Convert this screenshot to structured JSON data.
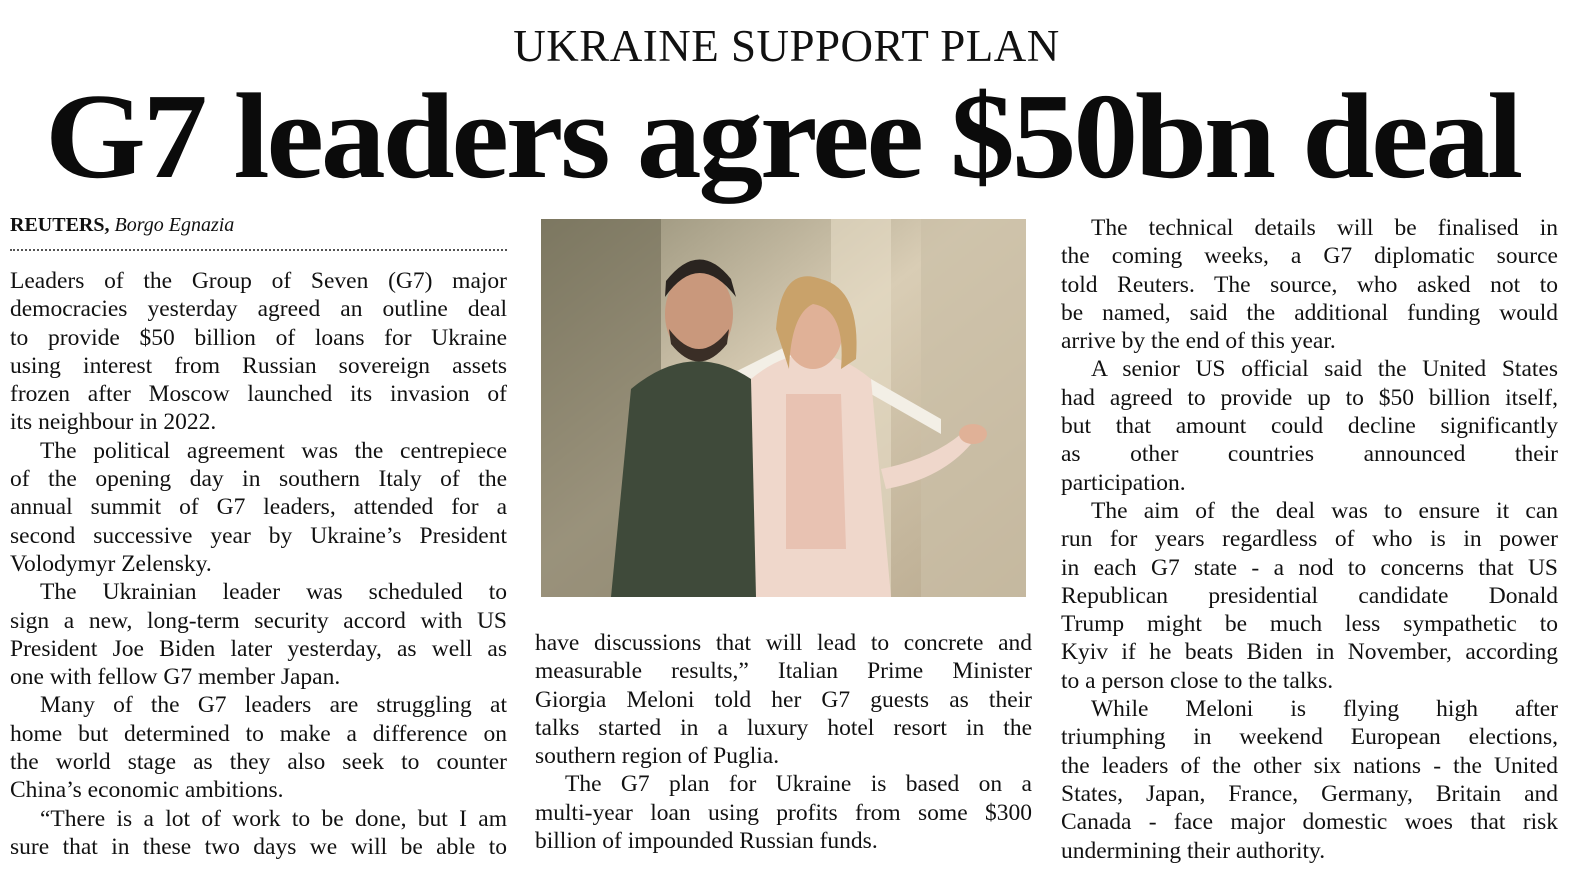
{
  "kicker": "UKRAINE SUPPORT PLAN",
  "headline": "G7 leaders agree $50bn deal",
  "byline": {
    "agency": "REUTERS,",
    "location": "Borgo Egnazia"
  },
  "photo": {
    "icon": "photo-zelensky-meloni"
  },
  "columns": [
    {
      "paragraphs": [
        {
          "continues": true,
          "lines": [
            "Leaders of the Group of Seven (G7) major",
            "democracies yesterday agreed an outline deal",
            "to provide $50 billion of loans for Ukraine",
            "using interest from Russian sovereign assets",
            "frozen after Moscow launched its invasion of",
            "its neighbour in 2022."
          ]
        },
        {
          "lines": [
            "The political agreement was the centrepiece",
            "of the opening day in southern Italy of the",
            "annual summit of G7 leaders, attended for a",
            "second successive year by Ukraine’s President",
            "Volodymyr Zelensky."
          ]
        },
        {
          "lines": [
            "The Ukrainian leader was scheduled to",
            "sign a new, long-term security accord with US",
            "President Joe Biden later yesterday, as well as",
            "one with fellow G7 member Japan."
          ]
        },
        {
          "lines": [
            "Many of the G7 leaders are struggling at",
            "home but determined to make a difference on",
            "the world stage as they also seek to counter",
            "China’s economic ambitions."
          ]
        },
        {
          "runs_on": true,
          "lines": [
            "“There is a lot of work to be done, but I am",
            "sure that in these two days we will be able to"
          ]
        }
      ]
    },
    {
      "paragraphs": [
        {
          "continues": true,
          "lines": [
            "have discussions that will lead to concrete and",
            "measurable results,” Italian Prime Minister",
            "Giorgia Meloni told her G7 guests as their",
            "talks started in a luxury hotel resort in the",
            "southern region of Puglia."
          ]
        },
        {
          "lines": [
            "The G7 plan for Ukraine is based on a",
            "multi-year loan using profits from some $300",
            "billion of impounded Russian funds."
          ]
        }
      ]
    },
    {
      "paragraphs": [
        {
          "lines": [
            "The technical details will be finalised in",
            "the coming weeks, a G7 diplomatic source",
            "told Reuters. The source, who asked not to",
            "be named, said the additional funding would",
            "arrive by the end of this year."
          ]
        },
        {
          "lines": [
            "A senior US official said the United States",
            "had agreed to provide up to $50 billion itself,",
            "but that amount could decline significantly",
            "as other countries announced their",
            "participation."
          ]
        },
        {
          "lines": [
            "The aim of the deal was to ensure it can",
            "run for years regardless of who is in power",
            "in each G7 state - a nod to concerns that US",
            "Republican presidential candidate Donald",
            "Trump might be much less sympathetic to",
            "Kyiv if he beats Biden in November, according",
            "to a person close to the talks."
          ]
        },
        {
          "lines": [
            "While Meloni is flying high after",
            "triumphing in weekend European elections,",
            "the leaders of the other six nations - the United",
            "States, Japan, France, Germany, Britain and",
            "Canada - face major domestic woes that risk",
            "undermining their authority."
          ]
        }
      ]
    }
  ]
}
